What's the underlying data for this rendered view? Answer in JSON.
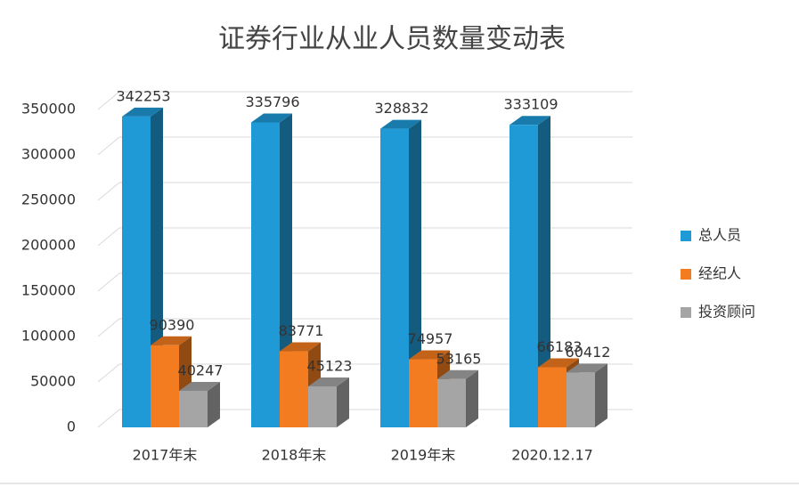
{
  "chart_data": {
    "type": "bar3d",
    "title": "证券行业从业人员数量变动表",
    "categories": [
      "2017年末",
      "2018年末",
      "2019年末",
      "2020.12.17"
    ],
    "series": [
      {
        "name": "总人员",
        "color": "#1f9ad6",
        "values": [
          342253,
          335796,
          328832,
          333109
        ]
      },
      {
        "name": "经纪人",
        "color": "#f47c20",
        "values": [
          90390,
          83771,
          74957,
          66183
        ]
      },
      {
        "name": "投资顾问",
        "color": "#a5a5a5",
        "values": [
          40247,
          45123,
          53165,
          60412
        ]
      }
    ],
    "ylim": [
      0,
      350000
    ],
    "yticks": [
      0,
      50000,
      100000,
      150000,
      200000,
      250000,
      300000,
      350000
    ],
    "grid": true,
    "legend": "right"
  }
}
